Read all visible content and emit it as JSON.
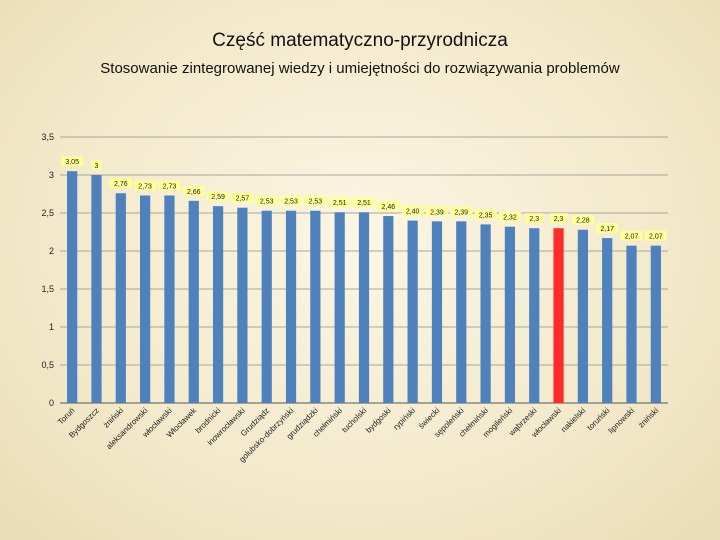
{
  "header": {
    "title": "Część matematyczno-przyrodnicza",
    "subtitle": "Stosowanie zintegrowanej wiedzy i umiejętności do rozwiązywania problemów"
  },
  "colors": {
    "bar": "#4f81bd",
    "highlight": "#ff2a2a",
    "grid": "#8c8c8c",
    "label_bg": "#ffff99"
  },
  "chart_data": {
    "type": "bar",
    "title": "Stosowanie zintegrowanej wiedzy i umiejętności do rozwiązywania problemów",
    "xlabel": "",
    "ylabel": "",
    "ylim": [
      0,
      3.5
    ],
    "yticks": [
      "0",
      "0,5",
      "1",
      "1,5",
      "2",
      "2,5",
      "3",
      "3,5"
    ],
    "grid": true,
    "highlight_index": 20,
    "categories": [
      "Toruń",
      "Bydgoszcz",
      "żniński",
      "aleksandrowski",
      "włocławski",
      "Włocławek",
      "brodnicki",
      "inowrocławski",
      "Grudziądz",
      "golubsko-dobrzyński",
      "grudziądzki",
      "chełmiński",
      "tucholski",
      "bydgoski",
      "rypiński",
      "świecki",
      "sępoleński",
      "chełmiński",
      "mogileński",
      "wąbrzeski",
      "włocławski",
      "nakielski",
      "toruński",
      "lipnowski",
      "żniński"
    ],
    "values": [
      3.05,
      3.0,
      2.76,
      2.73,
      2.73,
      2.66,
      2.59,
      2.57,
      2.53,
      2.53,
      2.53,
      2.51,
      2.51,
      2.46,
      2.4,
      2.39,
      2.39,
      2.35,
      2.32,
      2.3,
      2.3,
      2.28,
      2.17,
      2.07,
      2.07
    ],
    "value_labels": [
      "3,05",
      "3",
      "2,76",
      "2,73",
      "2,73",
      "2,66",
      "2,59",
      "2,57",
      "2,53",
      "2,53",
      "2,53",
      "2,51",
      "2,51",
      "2,46",
      "2,40",
      "2,39",
      "2,39",
      "2,35",
      "2,32",
      "2,3",
      "2,3",
      "2,28",
      "2,17",
      "2,07",
      "2,07"
    ]
  }
}
